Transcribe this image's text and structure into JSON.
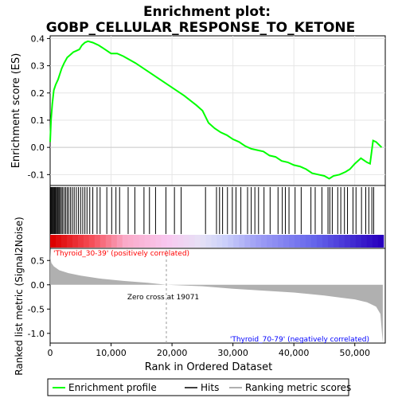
{
  "chart_data": {
    "type": "line",
    "title_line1": "Enrichment plot:",
    "title_line2": "GOBP_CELLULAR_RESPONSE_TO_KETONE",
    "es_ylabel": "Enrichment score (ES)",
    "es_yticks": [
      0.4,
      0.3,
      0.2,
      0.1,
      0.0,
      -0.1
    ],
    "es_ylim": [
      -0.14,
      0.41
    ],
    "es_curve": [
      [
        0,
        0.02
      ],
      [
        150,
        0.1
      ],
      [
        350,
        0.16
      ],
      [
        600,
        0.21
      ],
      [
        900,
        0.23
      ],
      [
        1300,
        0.25
      ],
      [
        1600,
        0.27
      ],
      [
        1900,
        0.29
      ],
      [
        2300,
        0.31
      ],
      [
        2800,
        0.33
      ],
      [
        3300,
        0.34
      ],
      [
        3800,
        0.35
      ],
      [
        4300,
        0.355
      ],
      [
        4800,
        0.36
      ],
      [
        5200,
        0.375
      ],
      [
        5700,
        0.385
      ],
      [
        6200,
        0.39
      ],
      [
        7000,
        0.385
      ],
      [
        8000,
        0.375
      ],
      [
        9000,
        0.36
      ],
      [
        10000,
        0.345
      ],
      [
        11000,
        0.345
      ],
      [
        12000,
        0.335
      ],
      [
        14000,
        0.31
      ],
      [
        16000,
        0.28
      ],
      [
        18000,
        0.25
      ],
      [
        20000,
        0.22
      ],
      [
        22000,
        0.19
      ],
      [
        24000,
        0.155
      ],
      [
        25000,
        0.135
      ],
      [
        26000,
        0.09
      ],
      [
        27000,
        0.07
      ],
      [
        28000,
        0.055
      ],
      [
        29000,
        0.045
      ],
      [
        30000,
        0.03
      ],
      [
        31000,
        0.02
      ],
      [
        32000,
        0.005
      ],
      [
        33000,
        -0.005
      ],
      [
        34000,
        -0.01
      ],
      [
        35000,
        -0.015
      ],
      [
        36000,
        -0.03
      ],
      [
        37000,
        -0.035
      ],
      [
        38000,
        -0.05
      ],
      [
        39000,
        -0.055
      ],
      [
        40000,
        -0.065
      ],
      [
        41000,
        -0.07
      ],
      [
        42000,
        -0.08
      ],
      [
        43000,
        -0.095
      ],
      [
        44000,
        -0.1
      ],
      [
        45000,
        -0.105
      ],
      [
        45800,
        -0.115
      ],
      [
        46500,
        -0.105
      ],
      [
        47500,
        -0.1
      ],
      [
        48500,
        -0.09
      ],
      [
        49200,
        -0.08
      ],
      [
        50000,
        -0.06
      ],
      [
        51000,
        -0.04
      ],
      [
        52000,
        -0.055
      ],
      [
        52500,
        -0.06
      ],
      [
        53000,
        0.025
      ],
      [
        53500,
        0.02
      ],
      [
        54400,
        0.0
      ]
    ],
    "xlabel": "Rank in Ordered Dataset",
    "xticks": [
      0,
      10000,
      20000,
      30000,
      40000,
      50000
    ],
    "xtick_labels": [
      "0",
      "10,000",
      "20,000",
      "30,000",
      "40,000",
      "50,000"
    ],
    "xlim": [
      0,
      55000
    ],
    "n_genes": 54700,
    "hits": [
      120,
      240,
      380,
      500,
      640,
      760,
      880,
      1020,
      1180,
      1320,
      1470,
      1650,
      1850,
      2050,
      2300,
      2550,
      2800,
      3050,
      3350,
      3650,
      3950,
      4300,
      4650,
      5000,
      5350,
      5700,
      6050,
      6500,
      7000,
      7700,
      8200,
      9300,
      10100,
      10800,
      11400,
      12800,
      13900,
      15400,
      16300,
      17300,
      19000,
      20400,
      21500,
      25500,
      27300,
      27800,
      28300,
      29100,
      29900,
      30500,
      31300,
      32400,
      33000,
      33600,
      34200,
      35100,
      36100,
      37400,
      38100,
      38600,
      39200,
      40200,
      41200,
      42800,
      43500,
      44600,
      45600,
      45900,
      46300,
      47200,
      47700,
      48300,
      48800,
      49700,
      50200,
      51100,
      51800,
      52300,
      52800,
      53100
    ],
    "metric_ylabel": "Ranked list metric (Signal2Noise)",
    "metric_yticks": [
      0.5,
      0.0,
      -0.5,
      -1.0
    ],
    "metric_ylim": [
      -1.2,
      0.75
    ],
    "metric_curve": [
      [
        0,
        0.75
      ],
      [
        60,
        0.55
      ],
      [
        200,
        0.45
      ],
      [
        600,
        0.38
      ],
      [
        1500,
        0.3
      ],
      [
        3000,
        0.24
      ],
      [
        5000,
        0.19
      ],
      [
        8000,
        0.13
      ],
      [
        12000,
        0.08
      ],
      [
        16000,
        0.04
      ],
      [
        19071,
        0.0
      ],
      [
        25000,
        -0.03
      ],
      [
        30000,
        -0.08
      ],
      [
        35000,
        -0.12
      ],
      [
        40000,
        -0.16
      ],
      [
        45000,
        -0.22
      ],
      [
        48000,
        -0.27
      ],
      [
        50000,
        -0.3
      ],
      [
        52000,
        -0.36
      ],
      [
        53500,
        -0.45
      ],
      [
        54200,
        -0.6
      ],
      [
        54600,
        -1.2
      ]
    ],
    "zero_cross_label": "Zero cross at 19071",
    "zero_cross": 19071,
    "pos_label": "'Thyroid_30-39' (positively correlated)",
    "neg_label": "'Thyroid_70-79' (negatively correlated)",
    "legend": [
      "Enrichment profile",
      "Hits",
      "Ranking metric scores"
    ],
    "colors": {
      "es_line": "#00ff00",
      "hit": "#000000",
      "metric_fill": "#b0b0b0",
      "pos_text": "#ff0000",
      "neg_text": "#0000ff",
      "zero_line": "#999999"
    }
  }
}
